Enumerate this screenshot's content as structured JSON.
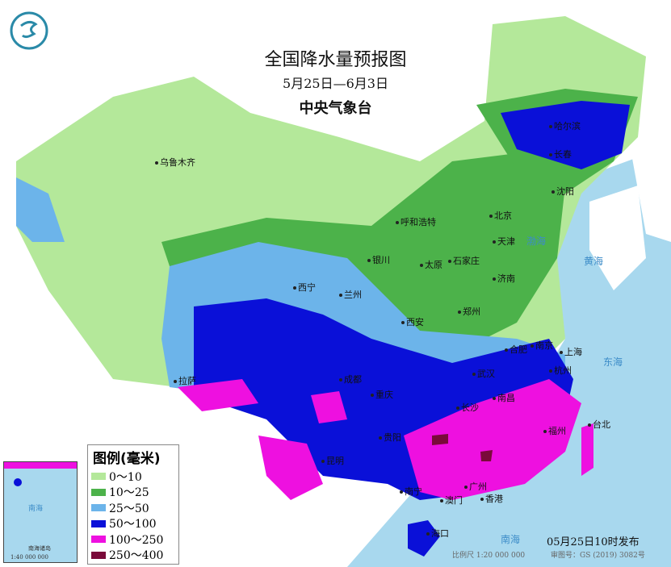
{
  "header": {
    "title": "全国降水量预报图",
    "date_range": "5月25日—6月3日",
    "issuer": "中央气象台"
  },
  "legend": {
    "title": "图例(毫米)",
    "items": [
      {
        "label": "0～10",
        "color": "#b4e89a"
      },
      {
        "label": "10～25",
        "color": "#4cb24a"
      },
      {
        "label": "25～50",
        "color": "#6cb4ea"
      },
      {
        "label": "50～100",
        "color": "#0a10d8"
      },
      {
        "label": "100～250",
        "color": "#ee10e0"
      },
      {
        "label": "250～400",
        "color": "#7a0a3a"
      }
    ]
  },
  "cities": [
    "乌鲁木齐",
    "哈尔滨",
    "长春",
    "沈阳",
    "北京",
    "天津",
    "呼和浩特",
    "石家庄",
    "太原",
    "济南",
    "银川",
    "西宁",
    "兰州",
    "西安",
    "郑州",
    "合肥",
    "南京",
    "上海",
    "杭州",
    "武汉",
    "成都",
    "重庆",
    "长沙",
    "南昌",
    "贵阳",
    "福州",
    "台北",
    "昆明",
    "南宁",
    "广州",
    "香港",
    "澳门",
    "海口",
    "拉萨"
  ],
  "seas": [
    "渤海",
    "黄海",
    "东海",
    "南海"
  ],
  "inset": {
    "title": "南海诸岛",
    "scale": "1:40 000 000"
  },
  "footer": {
    "issued": "05月25日10时发布",
    "scale": "比例尺 1:20 000 000",
    "approval": "审图号：GS (2019) 3082号"
  },
  "colors": {
    "sea": "#a8d8ee",
    "land_outside": "#ffffff"
  }
}
